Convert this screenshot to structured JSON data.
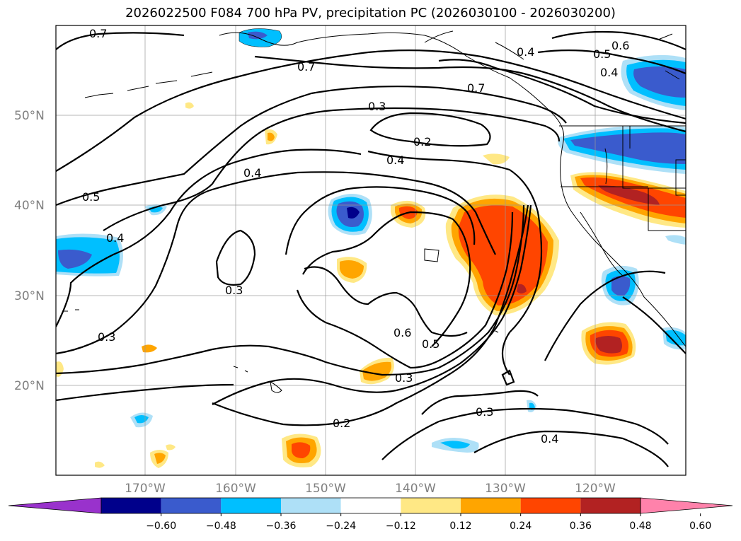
{
  "title": "2026022500 F084 700 hPa PV, precipitation PC (2026030100 - 2026030200)",
  "axes": {
    "lat_labels": [
      "50°N",
      "40°N",
      "30°N",
      "20°N"
    ],
    "lon_labels": [
      "170°W",
      "160°W",
      "150°W",
      "140°W",
      "130°W",
      "120°W"
    ]
  },
  "contour_labels": [
    "0.7",
    "0.7",
    "0.4",
    "0.5",
    "0.6",
    "0.4",
    "0.7",
    "0.3",
    "0.2",
    "0.4",
    "0.4",
    "0.5",
    "0.4",
    "0.3",
    "0.3",
    "0.6",
    "0.5",
    "0.3",
    "0.2",
    "0.3",
    "0.4"
  ],
  "colorbar": {
    "ticks": [
      "−0.60",
      "−0.48",
      "−0.36",
      "−0.24",
      "−0.12",
      "0.12",
      "0.24",
      "0.36",
      "0.48",
      "0.60"
    ],
    "colors": [
      "#9932cc",
      "#00008b",
      "#3a5bcd",
      "#00bfff",
      "#aee0f7",
      "#ffffff",
      "#ffe885",
      "#ffa500",
      "#ff4500",
      "#b22222",
      "#ff82ab"
    ]
  }
}
